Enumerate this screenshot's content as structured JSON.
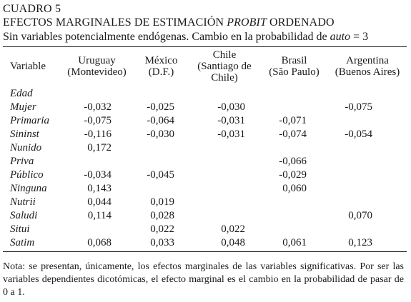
{
  "caption": {
    "label": "CUADRO 5",
    "title_before": "EFECTOS MARGINALES DE ESTIMACIÓN ",
    "title_italic": "PROBIT",
    "title_after": " ORDENADO",
    "subtitle_before": "Sin variables potencialmente endógenas. Cambio en la probabilidad de ",
    "subtitle_italic": "auto",
    "subtitle_after": " = 3"
  },
  "table": {
    "header": {
      "variable": "Variable",
      "columns": [
        {
          "line1": "Uruguay",
          "line2": "(Montevideo)",
          "line3": ""
        },
        {
          "line1": "México",
          "line2": "(D.F.)",
          "line3": ""
        },
        {
          "line1": "Chile",
          "line2": "(Santiago de",
          "line3": "Chile)"
        },
        {
          "line1": "Brasil",
          "line2": "(São Paulo)",
          "line3": ""
        },
        {
          "line1": "Argentina",
          "line2": "(Buenos Aires)",
          "line3": ""
        }
      ]
    },
    "rows": [
      {
        "variable": "Edad",
        "values": [
          "",
          "",
          "",
          "",
          ""
        ]
      },
      {
        "variable": "Mujer",
        "values": [
          "-0,032",
          "-0,025",
          "-0,030",
          "",
          "-0,075"
        ]
      },
      {
        "variable": "Primaria",
        "values": [
          "-0,075",
          "-0,064",
          "-0,031",
          "-0,071",
          ""
        ]
      },
      {
        "variable": "Sininst",
        "values": [
          "-0,116",
          "-0,030",
          "-0,031",
          "-0,074",
          "-0,054"
        ]
      },
      {
        "variable": "Nunido",
        "values": [
          "0,172",
          "",
          "",
          "",
          ""
        ]
      },
      {
        "variable": "Priva",
        "values": [
          "",
          "",
          "",
          "-0,066",
          ""
        ]
      },
      {
        "variable": "Público",
        "values": [
          "-0,034",
          "-0,045",
          "",
          "-0,029",
          ""
        ]
      },
      {
        "variable": "Ninguna",
        "values": [
          "0,143",
          "",
          "",
          "0,060",
          ""
        ]
      },
      {
        "variable": "Nutrii",
        "values": [
          "0,044",
          "0,019",
          "",
          "",
          ""
        ]
      },
      {
        "variable": "Saludi",
        "values": [
          "0,114",
          "0,028",
          "",
          "",
          "0,070"
        ]
      },
      {
        "variable": "Situi",
        "values": [
          "",
          "0,022",
          "0,022",
          "",
          ""
        ]
      },
      {
        "variable": "Satim",
        "values": [
          "0,068",
          "0,033",
          "0,048",
          "0,061",
          "0,123"
        ]
      }
    ]
  },
  "note": "Nota: se presentan, únicamente, los efectos marginales de las variables significativas. Por ser las variables dependientes dicotómicas, el efecto marginal es el cambio en la probabilidad de pasar de 0 a 1."
}
